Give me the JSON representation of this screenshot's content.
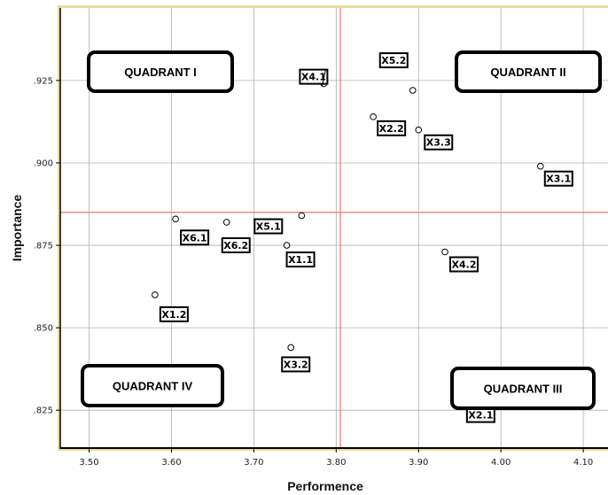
{
  "chart_data": {
    "type": "scatter",
    "xlabel": "Performence",
    "ylabel": "Importance",
    "xlim": [
      3.465,
      4.13
    ],
    "ylim": [
      0.8135,
      0.947
    ],
    "x_ticks": [
      3.5,
      3.6,
      3.7,
      3.8,
      3.9,
      4.0,
      4.1
    ],
    "x_tick_labels": [
      "3.50",
      "3.60",
      "3.70",
      "3.80",
      "3.90",
      "4.00",
      "4.10"
    ],
    "y_ticks": [
      0.825,
      0.85,
      0.875,
      0.9,
      0.925
    ],
    "y_tick_labels": [
      ".825",
      ".850",
      ".875",
      ".900",
      ".925"
    ],
    "grid": true,
    "reference_lines": {
      "x": 3.805,
      "y": 0.885,
      "color": "#f08080"
    },
    "points": [
      {
        "label": "X4.1",
        "x": 3.785,
        "y": 0.924
      },
      {
        "label": "X5.2",
        "x": 3.893,
        "y": 0.922
      },
      {
        "label": "X2.2",
        "x": 3.845,
        "y": 0.914
      },
      {
        "label": "X3.3",
        "x": 3.9,
        "y": 0.91
      },
      {
        "label": "X3.1",
        "x": 4.048,
        "y": 0.899
      },
      {
        "label": "X6.1",
        "x": 3.605,
        "y": 0.883
      },
      {
        "label": "X6.2",
        "x": 3.667,
        "y": 0.882
      },
      {
        "label": "X5.1",
        "x": 3.758,
        "y": 0.884
      },
      {
        "label": "X1.1",
        "x": 3.74,
        "y": 0.875
      },
      {
        "label": "X4.2",
        "x": 3.932,
        "y": 0.873
      },
      {
        "label": "X1.2",
        "x": 3.58,
        "y": 0.86
      },
      {
        "label": "X3.2",
        "x": 3.745,
        "y": 0.844
      },
      {
        "label": "X2.1",
        "x": 3.962,
        "y": 0.823
      }
    ],
    "quadrants": [
      {
        "name": "quadrant-1",
        "text": "QUADRANT I"
      },
      {
        "name": "quadrant-2",
        "text": "QUADRANT II"
      },
      {
        "name": "quadrant-3",
        "text": "QUADRANT III"
      },
      {
        "name": "quadrant-4",
        "text": "QUADRANT IV"
      }
    ],
    "colors": {
      "plot_border": "#e8dca0",
      "axis": "#000000",
      "grid": "#b0b0b0",
      "reference": "#f08080",
      "marker": "#000000"
    }
  }
}
